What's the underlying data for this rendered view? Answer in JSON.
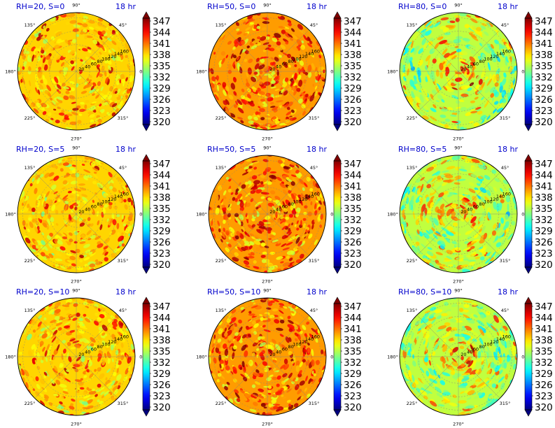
{
  "time_label": "18 hr",
  "theta_labels": [
    "90°",
    "45°",
    "0°",
    "315°",
    "270°",
    "225°",
    "180°",
    "135°"
  ],
  "radial_labels": [
    "20",
    "40",
    "60",
    "80",
    "100",
    "120",
    "140",
    "160"
  ],
  "colorbar": {
    "ticks": [
      "347",
      "344",
      "341",
      "338",
      "335",
      "332",
      "329",
      "326",
      "323",
      "320"
    ],
    "min": 320,
    "max": 347,
    "colors": [
      "#00007f",
      "#0000ff",
      "#007fff",
      "#00ffff",
      "#7fff7f",
      "#ffff00",
      "#ff7f00",
      "#ff0000",
      "#7f0000"
    ]
  },
  "chart_data": [
    {
      "type": "heatmap",
      "projection": "polar",
      "title": "RH=20, S=0",
      "value_range": [
        320,
        347
      ]
    },
    {
      "type": "heatmap",
      "projection": "polar",
      "title": "RH=50, S=0",
      "value_range": [
        320,
        347
      ]
    },
    {
      "type": "heatmap",
      "projection": "polar",
      "title": "RH=80, S=0",
      "value_range": [
        320,
        347
      ]
    },
    {
      "type": "heatmap",
      "projection": "polar",
      "title": "RH=20, S=5",
      "value_range": [
        320,
        347
      ]
    },
    {
      "type": "heatmap",
      "projection": "polar",
      "title": "RH=50, S=5",
      "value_range": [
        320,
        347
      ]
    },
    {
      "type": "heatmap",
      "projection": "polar",
      "title": "RH=80, S=5",
      "value_range": [
        320,
        347
      ]
    },
    {
      "type": "heatmap",
      "projection": "polar",
      "title": "RH=20, S=10",
      "value_range": [
        320,
        347
      ]
    },
    {
      "type": "heatmap",
      "projection": "polar",
      "title": "RH=50, S=10",
      "value_range": [
        320,
        347
      ]
    },
    {
      "type": "heatmap",
      "projection": "polar",
      "title": "RH=80, S=10",
      "value_range": [
        320,
        347
      ]
    }
  ]
}
